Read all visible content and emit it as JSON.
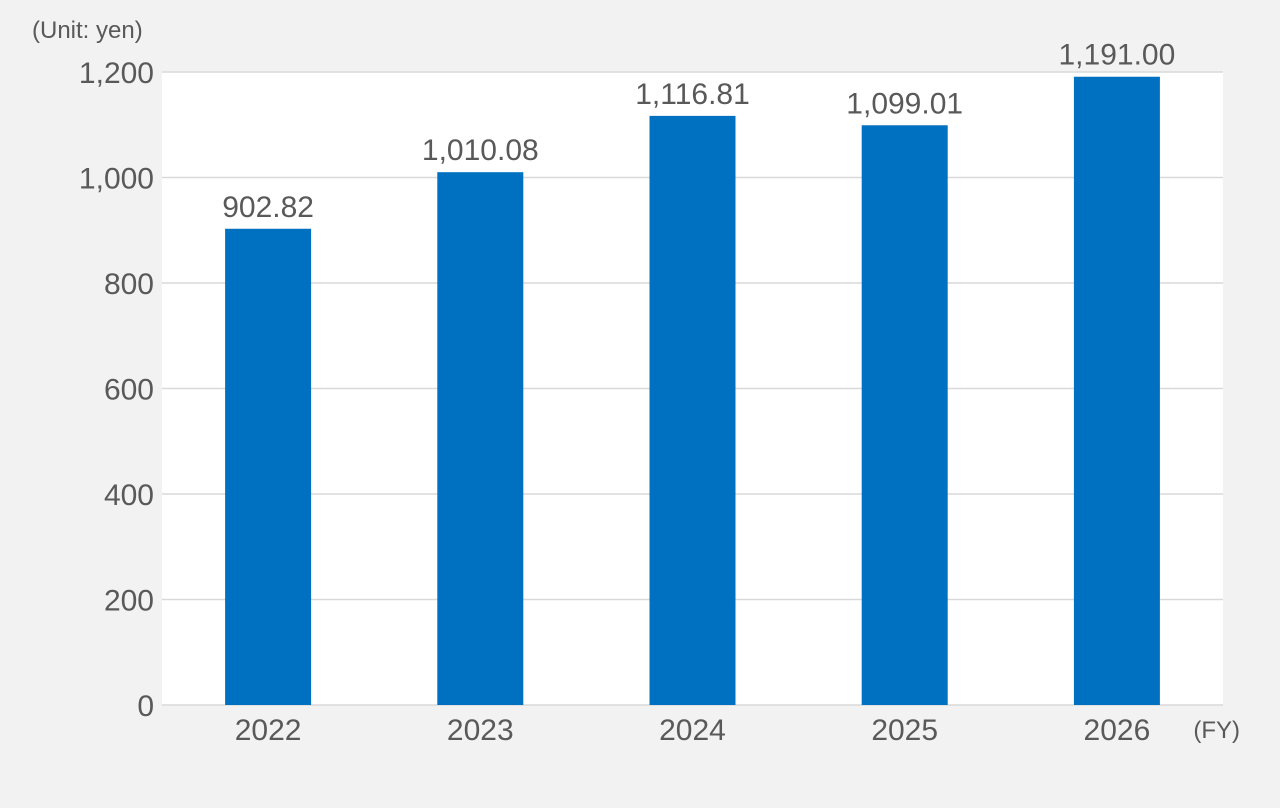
{
  "chart_data": {
    "type": "bar",
    "title": "",
    "unit_label": "(Unit: yen)",
    "xlabel": "(FY)",
    "ylabel": "",
    "categories": [
      "2022",
      "2023",
      "2024",
      "2025",
      "2026"
    ],
    "values": [
      902.82,
      1010.08,
      1116.81,
      1099.01,
      1191.0
    ],
    "data_labels": [
      "902.82",
      "1,010.08",
      "1,116.81",
      "1,099.01",
      "1,191.00"
    ],
    "ylim": [
      0,
      1200
    ],
    "yticks": [
      0,
      200,
      400,
      600,
      800,
      1000,
      1200
    ],
    "ytick_labels": [
      "0",
      "200",
      "400",
      "600",
      "800",
      "1,000",
      "1,200"
    ],
    "grid": true,
    "legend": "none",
    "colors": {
      "bar": "#0070c0",
      "plot_background": "#ffffff",
      "page_background": "#f2f2f2",
      "grid": "#d9d9d9",
      "text": "#595959"
    }
  }
}
